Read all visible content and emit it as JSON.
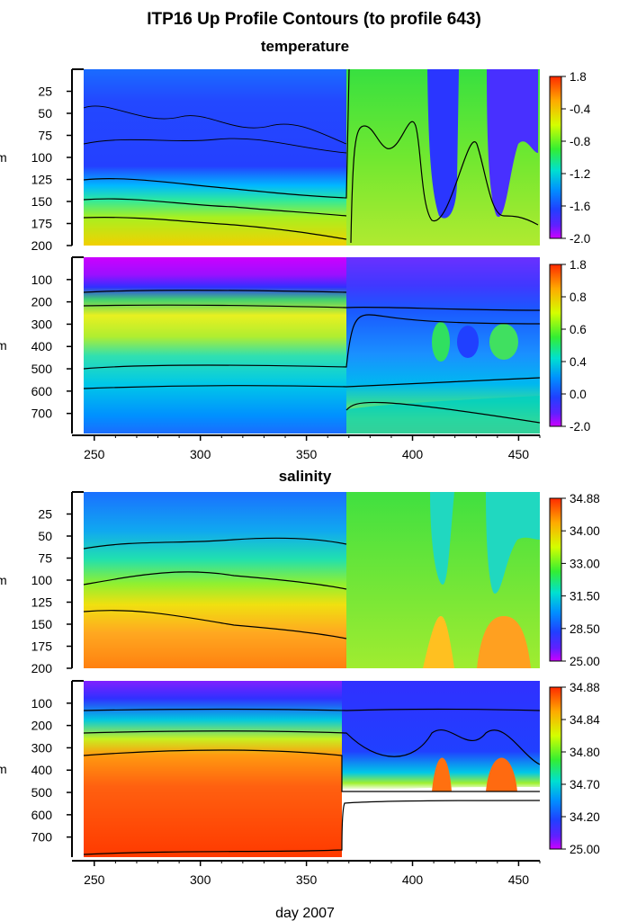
{
  "chart_data": {
    "type": "heatmap",
    "title": "ITP16 Up Profile Contours (to profile 643)",
    "xlabel": "day 2007",
    "ylabel": "m",
    "xlim": [
      245,
      460
    ],
    "x_ticks": [
      "250",
      "300",
      "350",
      "400",
      "450"
    ],
    "sections": [
      {
        "name": "temperature",
        "panels": [
          {
            "id": "temp-upper",
            "ylim": [
              0,
              200
            ],
            "y_ticks": [
              "25",
              "50",
              "75",
              "100",
              "125",
              "150",
              "175",
              "200"
            ],
            "y_values": [
              25,
              50,
              75,
              100,
              125,
              150,
              175,
              200
            ],
            "colorbar_ticks": [
              "1.8",
              "-0.4",
              "-0.8",
              "-1.2",
              "-1.6",
              "-2.0"
            ],
            "colormap": [
              "#ff2a00",
              "#ffaa00",
              "#d4ff00",
              "#33ee33",
              "#00e0d0",
              "#0090ff",
              "#2040ff",
              "#6020ff",
              "#cc00ff"
            ]
          },
          {
            "id": "temp-lower",
            "ylim": [
              0,
              790
            ],
            "y_ticks": [
              "100",
              "200",
              "300",
              "400",
              "500",
              "600",
              "700"
            ],
            "y_values": [
              100,
              200,
              300,
              400,
              500,
              600,
              700
            ],
            "colorbar_ticks": [
              "1.8",
              "0.8",
              "0.6",
              "0.4",
              "0.0",
              "-2.0"
            ],
            "colormap": [
              "#ff2a00",
              "#ffaa00",
              "#d4ff00",
              "#33ee33",
              "#00e0d0",
              "#0090ff",
              "#2040ff",
              "#6020ff",
              "#cc00ff"
            ]
          }
        ]
      },
      {
        "name": "salinity",
        "panels": [
          {
            "id": "sal-upper",
            "ylim": [
              0,
              200
            ],
            "y_ticks": [
              "25",
              "50",
              "75",
              "100",
              "125",
              "150",
              "175",
              "200"
            ],
            "y_values": [
              25,
              50,
              75,
              100,
              125,
              150,
              175,
              200
            ],
            "colorbar_ticks": [
              "34.88",
              "34.00",
              "33.00",
              "31.50",
              "28.50",
              "25.00"
            ],
            "colormap": [
              "#ff2a00",
              "#ffaa00",
              "#d4ff00",
              "#33ee33",
              "#00e0d0",
              "#0090ff",
              "#2040ff",
              "#6020ff",
              "#cc00ff"
            ]
          },
          {
            "id": "sal-lower",
            "ylim": [
              0,
              790
            ],
            "y_ticks": [
              "100",
              "200",
              "300",
              "400",
              "500",
              "600",
              "700"
            ],
            "y_values": [
              100,
              200,
              300,
              400,
              500,
              600,
              700
            ],
            "colorbar_ticks": [
              "34.88",
              "34.84",
              "34.80",
              "34.70",
              "34.20",
              "25.00"
            ],
            "colormap": [
              "#ff2a00",
              "#ffaa00",
              "#d4ff00",
              "#33ee33",
              "#00e0d0",
              "#0090ff",
              "#2040ff",
              "#6020ff",
              "#cc00ff"
            ]
          }
        ]
      }
    ]
  }
}
